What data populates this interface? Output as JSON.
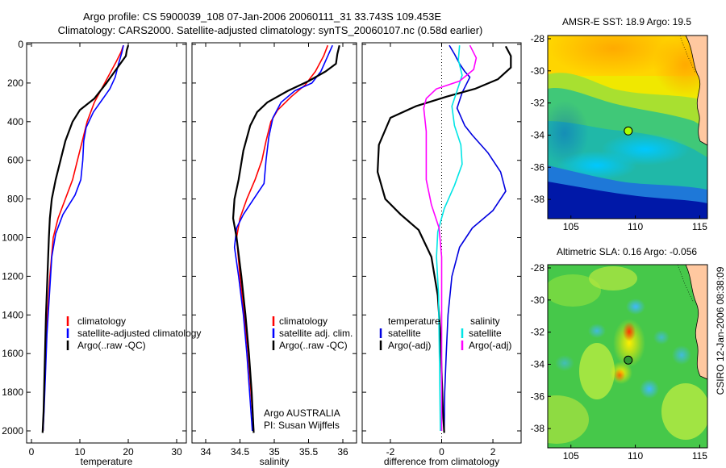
{
  "header": {
    "line1": "Argo profile: CS 5900039_108 07-Jan-2006 20060111_31 33.743S 109.453E",
    "line2": "Climatology: CARS2000. Satellite-adjusted climatology: synTS_20060107.nc (0.58d earlier)"
  },
  "side_note": "CSIRO 12-Jan-2006 08:38:09",
  "colors": {
    "climatology": "#ff0000",
    "satellite": "#0000ff",
    "argo": "#000000",
    "temp_satellite": "#0000e0",
    "sal_satellite": "#00e5e5",
    "sal_argo": "#ff00ff"
  },
  "chart_data": [
    {
      "type": "line",
      "id": "temperature",
      "xlabel": "temperature",
      "xlim": [
        -1,
        32
      ],
      "xticks": [
        0,
        10,
        20,
        30
      ],
      "ylim": [
        0,
        2070
      ],
      "yticks": [
        0,
        200,
        400,
        600,
        800,
        1000,
        1200,
        1400,
        1600,
        1800,
        2000
      ],
      "y_reversed": true,
      "legend": [
        "climatology",
        "satellite-adjusted climatology",
        "Argo(..raw -QC)"
      ],
      "series": [
        {
          "name": "climatology",
          "color": "#ff0000",
          "points": [
            [
              19,
              5
            ],
            [
              18.5,
              40
            ],
            [
              17.5,
              90
            ],
            [
              16,
              160
            ],
            [
              14.5,
              230
            ],
            [
              13,
              300
            ],
            [
              11.5,
              400
            ],
            [
              10.5,
              500
            ],
            [
              9.5,
              600
            ],
            [
              8.5,
              700
            ],
            [
              7,
              800
            ],
            [
              5.5,
              900
            ],
            [
              4.5,
              1000
            ],
            [
              3.8,
              1200
            ],
            [
              3.3,
              1400
            ],
            [
              3,
              1600
            ],
            [
              2.7,
              1800
            ],
            [
              2.4,
              2000
            ]
          ]
        },
        {
          "name": "satellite-adjusted climatology",
          "color": "#0000ff",
          "points": [
            [
              19,
              5
            ],
            [
              18.7,
              40
            ],
            [
              18,
              100
            ],
            [
              17.3,
              170
            ],
            [
              16.2,
              230
            ],
            [
              14.5,
              290
            ],
            [
              12.8,
              350
            ],
            [
              11.3,
              430
            ],
            [
              10.8,
              500
            ],
            [
              10.6,
              600
            ],
            [
              10.2,
              700
            ],
            [
              9,
              780
            ],
            [
              6.5,
              880
            ],
            [
              5,
              980
            ],
            [
              4.2,
              1100
            ],
            [
              3.7,
              1300
            ],
            [
              3.2,
              1500
            ],
            [
              2.9,
              1700
            ],
            [
              2.6,
              1900
            ],
            [
              2.4,
              2000
            ]
          ]
        },
        {
          "name": "Argo(..raw -QC)",
          "color": "#000000",
          "points": [
            [
              20,
              5
            ],
            [
              19.7,
              30
            ],
            [
              19.5,
              60
            ],
            [
              17.5,
              130
            ],
            [
              15.5,
              200
            ],
            [
              13,
              280
            ],
            [
              10,
              340
            ],
            [
              8.5,
              400
            ],
            [
              7,
              500
            ],
            [
              6,
              600
            ],
            [
              5,
              700
            ],
            [
              4.2,
              800
            ],
            [
              3.8,
              900
            ],
            [
              3.6,
              1000
            ],
            [
              3.3,
              1200
            ],
            [
              3,
              1400
            ],
            [
              2.8,
              1600
            ],
            [
              2.6,
              1800
            ],
            [
              2.5,
              1900
            ],
            [
              2.3,
              2010
            ]
          ]
        }
      ]
    },
    {
      "type": "line",
      "id": "salinity",
      "xlabel": "salinity",
      "xlim": [
        33.8,
        36.2
      ],
      "xticks": [
        34,
        34.5,
        35,
        35.5,
        36
      ],
      "xtick_labels": [
        "34",
        "34.5",
        "35",
        "35.5",
        "36"
      ],
      "ylim": [
        0,
        2070
      ],
      "y_reversed": true,
      "legend": [
        "climatology",
        "satellite adj. clim.",
        "Argo(..raw -QC)"
      ],
      "annotations": [
        "Argo AUSTRALIA",
        "PI: Susan Wijffels"
      ],
      "series": [
        {
          "name": "climatology",
          "color": "#ff0000",
          "points": [
            [
              35.78,
              5
            ],
            [
              35.72,
              60
            ],
            [
              35.6,
              140
            ],
            [
              35.45,
              210
            ],
            [
              35.25,
              270
            ],
            [
              35.05,
              340
            ],
            [
              34.95,
              400
            ],
            [
              34.88,
              500
            ],
            [
              34.82,
              600
            ],
            [
              34.72,
              700
            ],
            [
              34.6,
              800
            ],
            [
              34.5,
              900
            ],
            [
              34.45,
              1000
            ],
            [
              34.5,
              1200
            ],
            [
              34.56,
              1400
            ],
            [
              34.62,
              1600
            ],
            [
              34.66,
              1800
            ],
            [
              34.7,
              2000
            ]
          ]
        },
        {
          "name": "satellite adj. clim.",
          "color": "#0000ff",
          "points": [
            [
              35.85,
              5
            ],
            [
              35.78,
              60
            ],
            [
              35.68,
              140
            ],
            [
              35.55,
              200
            ],
            [
              35.3,
              240
            ],
            [
              35.1,
              300
            ],
            [
              34.98,
              380
            ],
            [
              34.92,
              480
            ],
            [
              34.88,
              600
            ],
            [
              34.85,
              720
            ],
            [
              34.7,
              800
            ],
            [
              34.55,
              880
            ],
            [
              34.45,
              950
            ],
            [
              34.42,
              1050
            ],
            [
              34.48,
              1200
            ],
            [
              34.55,
              1400
            ],
            [
              34.6,
              1600
            ],
            [
              34.64,
              1800
            ],
            [
              34.68,
              2000
            ]
          ]
        },
        {
          "name": "Argo(..raw -QC)",
          "color": "#000000",
          "points": [
            [
              35.95,
              5
            ],
            [
              35.92,
              50
            ],
            [
              35.9,
              100
            ],
            [
              35.75,
              140
            ],
            [
              35.5,
              190
            ],
            [
              35.2,
              240
            ],
            [
              34.9,
              300
            ],
            [
              34.75,
              350
            ],
            [
              34.65,
              420
            ],
            [
              34.55,
              550
            ],
            [
              34.48,
              700
            ],
            [
              34.42,
              800
            ],
            [
              34.4,
              900
            ],
            [
              34.45,
              1000
            ],
            [
              34.52,
              1200
            ],
            [
              34.58,
              1400
            ],
            [
              34.63,
              1600
            ],
            [
              34.67,
              1800
            ],
            [
              34.7,
              2010
            ]
          ]
        }
      ]
    },
    {
      "type": "line",
      "id": "difference",
      "xlabel": "difference from climatology",
      "xlim": [
        -3.1,
        3.1
      ],
      "xticks": [
        -2,
        0,
        2
      ],
      "ylim": [
        0,
        2070
      ],
      "y_reversed": true,
      "legend": [
        "temperature",
        "satellite",
        "Argo(-adj)",
        "salinity",
        "satellite",
        "Argo(-adj)"
      ],
      "series": [
        {
          "name": "temperature satellite",
          "color": "#0000e0",
          "points": [
            [
              0.3,
              5
            ],
            [
              0.5,
              50
            ],
            [
              0.7,
              100
            ],
            [
              0.9,
              140
            ],
            [
              1.1,
              170
            ],
            [
              0.8,
              250
            ],
            [
              0.6,
              330
            ],
            [
              0.9,
              420
            ],
            [
              1.2,
              470
            ],
            [
              1.8,
              560
            ],
            [
              2.3,
              660
            ],
            [
              2.5,
              760
            ],
            [
              2.0,
              860
            ],
            [
              1.2,
              950
            ],
            [
              0.7,
              1050
            ],
            [
              0.4,
              1200
            ],
            [
              0.25,
              1400
            ],
            [
              0.18,
              1600
            ],
            [
              0.12,
              1800
            ],
            [
              0.1,
              2000
            ]
          ]
        },
        {
          "name": "temperature Argo(-adj)",
          "color": "#000000",
          "points": [
            [
              2.5,
              10
            ],
            [
              2.7,
              60
            ],
            [
              2.7,
              120
            ],
            [
              2.2,
              180
            ],
            [
              1.3,
              230
            ],
            [
              0.2,
              270
            ],
            [
              -1,
              320
            ],
            [
              -2,
              380
            ],
            [
              -2.45,
              520
            ],
            [
              -2.5,
              660
            ],
            [
              -2.2,
              800
            ],
            [
              -1.6,
              880
            ],
            [
              -0.9,
              960
            ],
            [
              -0.4,
              1100
            ],
            [
              -0.15,
              1300
            ],
            [
              -0.05,
              1500
            ],
            [
              0,
              1700
            ],
            [
              0.05,
              1900
            ],
            [
              0.1,
              2010
            ]
          ]
        },
        {
          "name": "salinity satellite",
          "color": "#00e5e5",
          "points": [
            [
              0.7,
              5
            ],
            [
              0.65,
              80
            ],
            [
              0.8,
              160
            ],
            [
              0.6,
              240
            ],
            [
              0.4,
              320
            ],
            [
              0.5,
              420
            ],
            [
              0.75,
              520
            ],
            [
              0.8,
              620
            ],
            [
              0.5,
              730
            ],
            [
              0.1,
              850
            ],
            [
              -0.15,
              970
            ],
            [
              -0.2,
              1100
            ],
            [
              -0.12,
              1300
            ],
            [
              -0.1,
              1500
            ],
            [
              -0.08,
              1700
            ],
            [
              -0.06,
              1900
            ],
            [
              -0.05,
              2000
            ]
          ]
        },
        {
          "name": "salinity Argo(-adj)",
          "color": "#ff00ff",
          "points": [
            [
              1.1,
              5
            ],
            [
              1.35,
              70
            ],
            [
              1.25,
              130
            ],
            [
              0.7,
              190
            ],
            [
              -0.2,
              230
            ],
            [
              -0.6,
              280
            ],
            [
              -0.7,
              330
            ],
            [
              -0.6,
              450
            ],
            [
              -0.6,
              570
            ],
            [
              -0.6,
              700
            ],
            [
              -0.4,
              830
            ],
            [
              -0.1,
              950
            ],
            [
              0,
              1100
            ],
            [
              0,
              1400
            ],
            [
              0,
              1700
            ],
            [
              0,
              2000
            ]
          ]
        }
      ]
    },
    {
      "type": "heatmap",
      "id": "amsr-sst",
      "title": "AMSR-E SST: 18.9 Argo: 19.5",
      "xlim": [
        103.2,
        115.6
      ],
      "ylim": [
        -39.2,
        -27.8
      ],
      "xticks": [
        105,
        110,
        115
      ],
      "yticks": [
        -28,
        -30,
        -32,
        -34,
        -36,
        -38
      ],
      "marker": {
        "lon": 109.45,
        "lat": -33.74,
        "color": "#aaff00"
      }
    },
    {
      "type": "heatmap",
      "id": "altimetric-sla",
      "title": "Altimetric SLA: 0.16 Argo: -0.056",
      "xlim": [
        103.2,
        115.6
      ],
      "ylim": [
        -39.2,
        -27.8
      ],
      "xticks": [
        105,
        110,
        115
      ],
      "yticks": [
        -28,
        -30,
        -32,
        -34,
        -36,
        -38
      ],
      "marker": {
        "lon": 109.45,
        "lat": -33.74,
        "color": "#339933"
      }
    }
  ]
}
